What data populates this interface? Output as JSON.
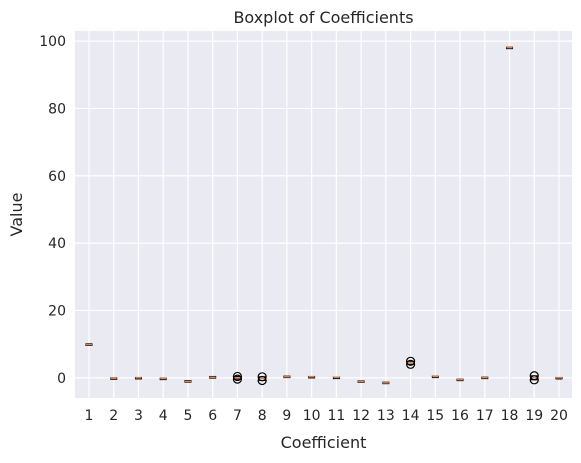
{
  "chart_data": {
    "type": "box",
    "title": "Boxplot of Coefficients",
    "xlabel": "Coefficient",
    "ylabel": "Value",
    "categories": [
      "1",
      "2",
      "3",
      "4",
      "5",
      "6",
      "7",
      "8",
      "9",
      "10",
      "11",
      "12",
      "13",
      "14",
      "15",
      "16",
      "17",
      "18",
      "19",
      "20"
    ],
    "ylim": [
      -6,
      103
    ],
    "y_ticks": [
      0,
      20,
      40,
      60,
      80,
      100
    ],
    "grid": true,
    "background_color": "#eaeaf2",
    "grid_color": "#ffffff",
    "median_color": "#dd8452",
    "box_color": "#000000",
    "series": [
      {
        "x": "1",
        "values": [
          9.6,
          10.1
        ]
      },
      {
        "x": "2",
        "values": [
          -0.2,
          0.0
        ]
      },
      {
        "x": "3",
        "values": [
          -0.1,
          0.1
        ]
      },
      {
        "x": "4",
        "values": [
          -0.3,
          -0.1
        ]
      },
      {
        "x": "5",
        "values": [
          -0.8,
          -1.3
        ]
      },
      {
        "x": "6",
        "values": [
          0.4,
          -0.1
        ]
      },
      {
        "x": "7",
        "values": [
          0.4,
          -0.4
        ]
      },
      {
        "x": "8",
        "values": [
          0.3,
          -0.8
        ]
      },
      {
        "x": "9",
        "values": [
          0.5,
          0.1
        ]
      },
      {
        "x": "10",
        "values": [
          0.2,
          0.4
        ]
      },
      {
        "x": "11",
        "values": [
          0.1,
          0.2
        ]
      },
      {
        "x": "12",
        "values": [
          -0.9,
          -1.3
        ]
      },
      {
        "x": "13",
        "values": [
          -1.3,
          -1.7
        ]
      },
      {
        "x": "14",
        "values": [
          4.9,
          4.0
        ]
      },
      {
        "x": "15",
        "values": [
          0.3,
          0.5
        ]
      },
      {
        "x": "16",
        "values": [
          -0.7,
          -0.4
        ]
      },
      {
        "x": "17",
        "values": [
          0.2,
          -0.1
        ]
      },
      {
        "x": "18",
        "values": [
          98.0,
          98.2
        ]
      },
      {
        "x": "19",
        "values": [
          0.6,
          -0.6
        ]
      },
      {
        "x": "20",
        "values": [
          0.1,
          -0.1
        ]
      }
    ]
  }
}
